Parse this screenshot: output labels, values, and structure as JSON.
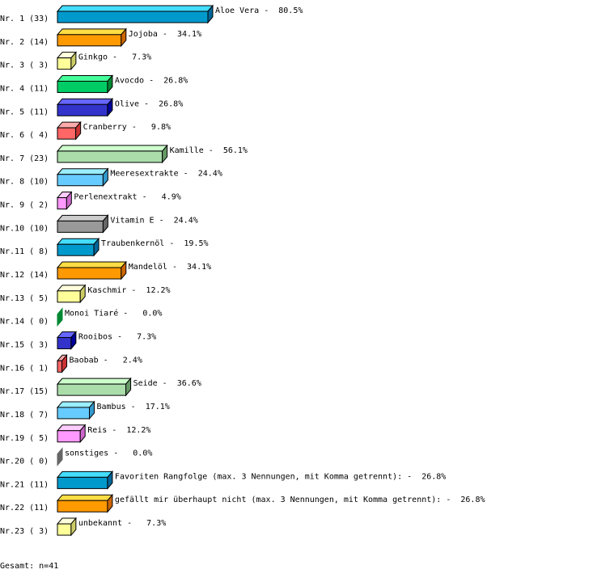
{
  "chart_data": {
    "type": "bar",
    "orientation": "horizontal",
    "style": "3d",
    "grid": false,
    "xlim": [
      0,
      100
    ],
    "row_labels": [
      "Nr. 1 (33)",
      "Nr. 2 (14)",
      "Nr. 3 ( 3)",
      "Nr. 4 (11)",
      "Nr. 5 (11)",
      "Nr. 6 ( 4)",
      "Nr. 7 (23)",
      "Nr. 8 (10)",
      "Nr. 9 ( 2)",
      "Nr.10 (10)",
      "Nr.11 ( 8)",
      "Nr.12 (14)",
      "Nr.13 ( 5)",
      "Nr.14 ( 0)",
      "Nr.15 ( 3)",
      "Nr.16 ( 1)",
      "Nr.17 (15)",
      "Nr.18 ( 7)",
      "Nr.19 ( 5)",
      "Nr.20 ( 0)",
      "Nr.21 (11)",
      "Nr.22 (11)",
      "Nr.23 ( 3)"
    ],
    "categories": [
      "Aloe Vera",
      "Jojoba",
      "Ginkgo",
      "Avocdo",
      "Olive",
      "Cranberry",
      "Kamille",
      "Meeresextrakte",
      "Perlenextrakt",
      "Vitamin E",
      "Traubenkernöl",
      "Mandelöl",
      "Kaschmir",
      "Monoi Tiaré",
      "Rooibos",
      "Baobab",
      "Seide",
      "Bambus",
      "Reis",
      "sonstiges",
      "Favoriten Rangfolge (max. 3 Nennungen, mit Komma getrennt):",
      "gefällt mir überhaupt nicht (max. 3 Nennungen, mit Komma getrennt):",
      "unbekannt"
    ],
    "counts": [
      33,
      14,
      3,
      11,
      11,
      4,
      23,
      10,
      2,
      10,
      8,
      14,
      5,
      0,
      3,
      1,
      15,
      7,
      5,
      0,
      11,
      11,
      3
    ],
    "values": [
      80.5,
      34.1,
      7.3,
      26.8,
      26.8,
      9.8,
      56.1,
      24.4,
      4.9,
      24.4,
      19.5,
      34.1,
      12.2,
      0.0,
      7.3,
      2.4,
      36.6,
      17.1,
      12.2,
      0.0,
      26.8,
      26.8,
      7.3
    ],
    "data_labels": [
      "Aloe Vera -  80.5%",
      "Jojoba -  34.1%",
      "Ginkgo -   7.3%",
      "Avocdo -  26.8%",
      "Olive -  26.8%",
      "Cranberry -   9.8%",
      "Kamille -  56.1%",
      "Meeresextrakte -  24.4%",
      "Perlenextrakt -   4.9%",
      "Vitamin E -  24.4%",
      "Traubenkernöl -  19.5%",
      "Mandelöl -  34.1%",
      "Kaschmir -  12.2%",
      "Monoi Tiaré -   0.0%",
      "Rooibos -   7.3%",
      "Baobab -   2.4%",
      "Seide -  36.6%",
      "Bambus -  17.1%",
      "Reis -  12.2%",
      "sonstiges -   0.0%",
      "Favoriten Rangfolge (max. 3 Nennungen, mit Komma getrennt): -  26.8%",
      "gefällt mir überhaupt nicht (max. 3 Nennungen, mit Komma getrennt): -  26.8%",
      "unbekannt -   7.3%"
    ],
    "palette": [
      {
        "front": "#0099cc",
        "top": "#44ddff",
        "side": "#006699"
      },
      {
        "front": "#ff9900",
        "top": "#ffdd44",
        "side": "#cc6600"
      },
      {
        "front": "#ffff99",
        "top": "#ffffdd",
        "side": "#cccc66"
      },
      {
        "front": "#00cc66",
        "top": "#44ff99",
        "side": "#008833"
      },
      {
        "front": "#3333cc",
        "top": "#6666ff",
        "side": "#000099"
      },
      {
        "front": "#ff6666",
        "top": "#ffaaaa",
        "side": "#cc3333"
      },
      {
        "front": "#aaddaa",
        "top": "#ccffcc",
        "side": "#669966"
      },
      {
        "front": "#66ccff",
        "top": "#99eeff",
        "side": "#3399cc"
      },
      {
        "front": "#ff99ff",
        "top": "#ffccff",
        "side": "#cc66cc"
      },
      {
        "front": "#999999",
        "top": "#cccccc",
        "side": "#666666"
      }
    ],
    "footer": "Gesamt: n=41"
  }
}
